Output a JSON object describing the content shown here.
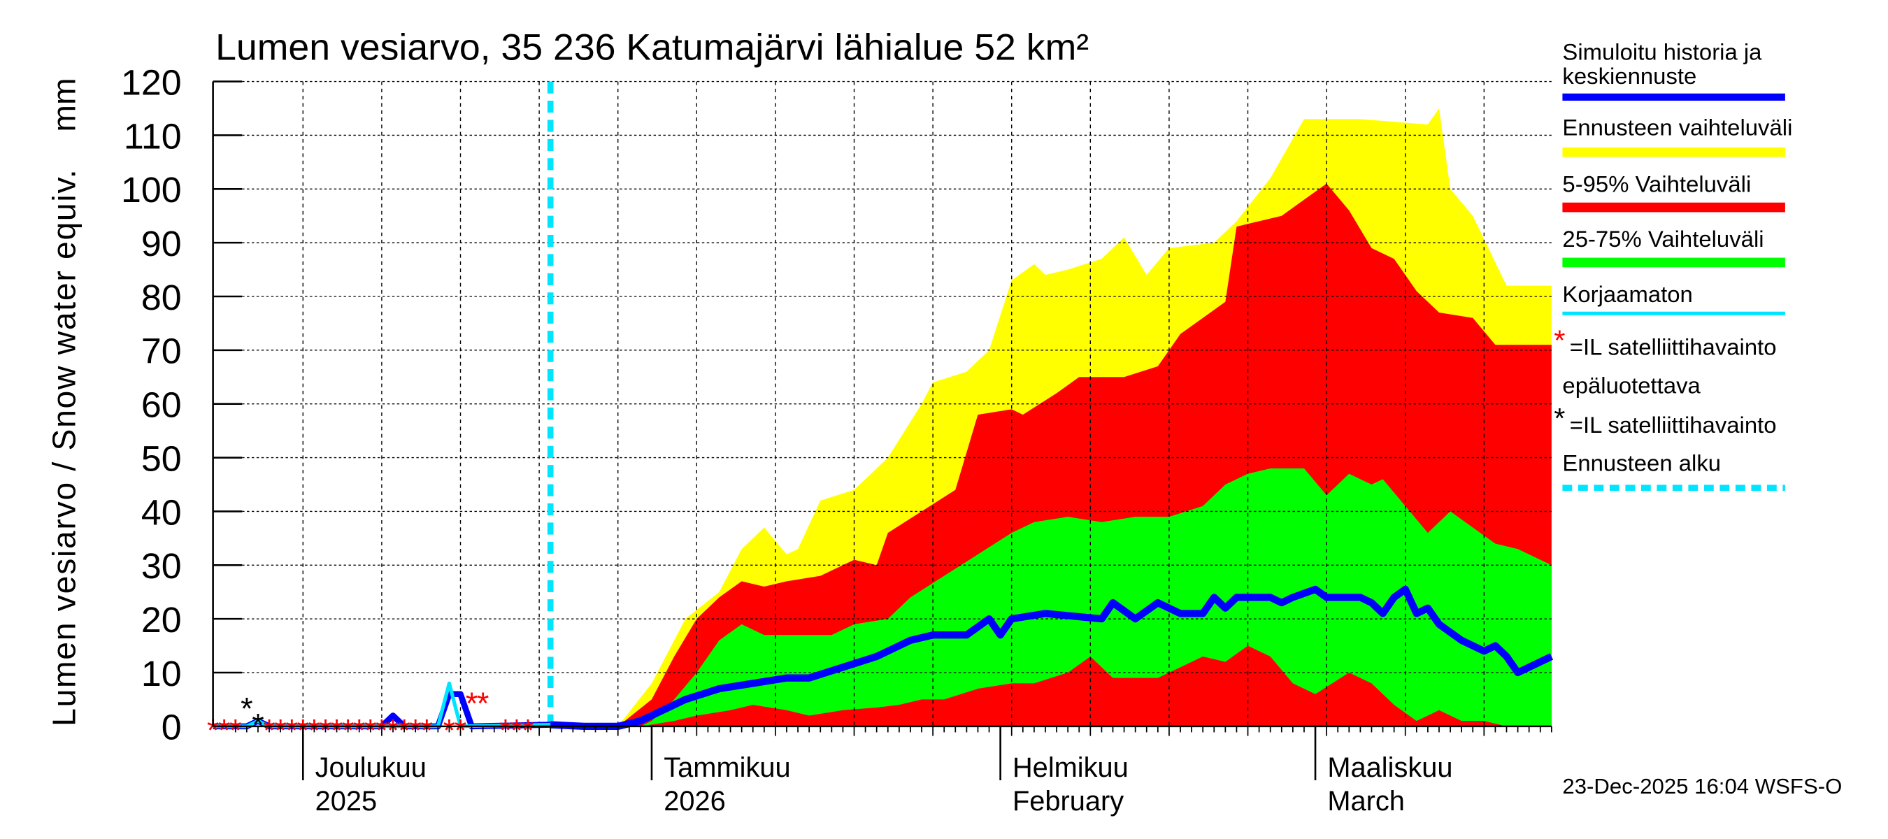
{
  "chart_data": {
    "type": "area",
    "title": "Lumen vesiarvo, 35 236 Katumajärvi lähialue 52 km²",
    "ylabel": "Lumen vesiarvo / Snow water equiv.",
    "yunit": "mm",
    "ylim": [
      0,
      120
    ],
    "yticks": [
      0,
      10,
      20,
      30,
      40,
      50,
      60,
      70,
      80,
      90,
      100,
      110,
      120
    ],
    "xlim": [
      "2025-11-23",
      "2026-03-22"
    ],
    "grid": true,
    "legend_position": "right",
    "month_labels": [
      {
        "date": "2025-12-01",
        "line1": "Joulukuu",
        "line2": "2025"
      },
      {
        "date": "2026-01-01",
        "line1": "Tammikuu",
        "line2": "2026"
      },
      {
        "date": "2026-02-01",
        "line1": "Helmikuu",
        "line2": "February"
      },
      {
        "date": "2026-03-01",
        "line1": "Maaliskuu",
        "line2": "March"
      }
    ],
    "forecast_start": "2025-12-23",
    "colors": {
      "median": "#0000ff",
      "range": "#ffff00",
      "p5_95": "#ff0000",
      "p25_75": "#00ff00",
      "uncorrected": "#00e5ff",
      "forecast_start": "#00e5ff",
      "obs_unreliable": "#ff0000",
      "obs": "#000000"
    },
    "series": {
      "range_upper": [
        [
          "2025-12-29",
          0
        ],
        [
          "2026-01-01",
          8
        ],
        [
          "2026-01-04",
          20
        ],
        [
          "2026-01-07",
          25
        ],
        [
          "2026-01-09",
          33
        ],
        [
          "2026-01-11",
          37
        ],
        [
          "2026-01-13",
          32
        ],
        [
          "2026-01-14",
          33
        ],
        [
          "2026-01-16",
          42
        ],
        [
          "2026-01-19",
          44
        ],
        [
          "2026-01-22",
          50
        ],
        [
          "2026-01-25",
          60
        ],
        [
          "2026-01-26",
          64
        ],
        [
          "2026-01-29",
          66
        ],
        [
          "2026-01-31",
          70
        ],
        [
          "2026-02-02",
          83
        ],
        [
          "2026-02-04",
          86
        ],
        [
          "2026-02-05",
          84
        ],
        [
          "2026-02-07",
          85
        ],
        [
          "2026-02-10",
          87
        ],
        [
          "2026-02-12",
          91
        ],
        [
          "2026-02-14",
          84
        ],
        [
          "2026-02-16",
          89
        ],
        [
          "2026-02-20",
          90
        ],
        [
          "2026-02-22",
          94
        ],
        [
          "2026-02-25",
          102
        ],
        [
          "2026-02-28",
          113
        ],
        [
          "2026-03-05",
          113
        ],
        [
          "2026-03-11",
          112
        ],
        [
          "2026-03-12",
          115
        ],
        [
          "2026-03-13",
          100
        ],
        [
          "2026-03-15",
          95
        ],
        [
          "2026-03-18",
          82
        ],
        [
          "2026-03-22",
          82
        ]
      ],
      "p95": [
        [
          "2025-12-29",
          0
        ],
        [
          "2026-01-01",
          5
        ],
        [
          "2026-01-03",
          13
        ],
        [
          "2026-01-05",
          20
        ],
        [
          "2026-01-07",
          24
        ],
        [
          "2026-01-09",
          27
        ],
        [
          "2026-01-11",
          26
        ],
        [
          "2026-01-13",
          27
        ],
        [
          "2026-01-16",
          28
        ],
        [
          "2026-01-19",
          31
        ],
        [
          "2026-01-21",
          30
        ],
        [
          "2026-01-22",
          36
        ],
        [
          "2026-01-25",
          40
        ],
        [
          "2026-01-28",
          44
        ],
        [
          "2026-01-30",
          58
        ],
        [
          "2026-02-02",
          59
        ],
        [
          "2026-02-03",
          58
        ],
        [
          "2026-02-06",
          62
        ],
        [
          "2026-02-08",
          65
        ],
        [
          "2026-02-12",
          65
        ],
        [
          "2026-02-15",
          67
        ],
        [
          "2026-02-17",
          73
        ],
        [
          "2026-02-19",
          76
        ],
        [
          "2026-02-21",
          79
        ],
        [
          "2026-02-22",
          93
        ],
        [
          "2026-02-26",
          95
        ],
        [
          "2026-02-28",
          98
        ],
        [
          "2026-03-02",
          101
        ],
        [
          "2026-03-04",
          96
        ],
        [
          "2026-03-06",
          89
        ],
        [
          "2026-03-08",
          87
        ],
        [
          "2026-03-10",
          81
        ],
        [
          "2026-03-12",
          77
        ],
        [
          "2026-03-15",
          76
        ],
        [
          "2026-03-17",
          71
        ],
        [
          "2026-03-22",
          71
        ]
      ],
      "p75": [
        [
          "2025-12-31",
          0
        ],
        [
          "2026-01-01",
          1
        ],
        [
          "2026-01-03",
          5
        ],
        [
          "2026-01-05",
          10
        ],
        [
          "2026-01-07",
          16
        ],
        [
          "2026-01-09",
          19
        ],
        [
          "2026-01-11",
          17
        ],
        [
          "2026-01-14",
          17
        ],
        [
          "2026-01-17",
          17
        ],
        [
          "2026-01-19",
          19
        ],
        [
          "2026-01-22",
          20
        ],
        [
          "2026-01-24",
          24
        ],
        [
          "2026-01-27",
          28
        ],
        [
          "2026-01-30",
          32
        ],
        [
          "2026-02-02",
          36
        ],
        [
          "2026-02-04",
          38
        ],
        [
          "2026-02-07",
          39
        ],
        [
          "2026-02-10",
          38
        ],
        [
          "2026-02-13",
          39
        ],
        [
          "2026-02-16",
          39
        ],
        [
          "2026-02-19",
          41
        ],
        [
          "2026-02-21",
          45
        ],
        [
          "2026-02-23",
          47
        ],
        [
          "2026-02-25",
          48
        ],
        [
          "2026-02-28",
          48
        ],
        [
          "2026-03-02",
          43
        ],
        [
          "2026-03-04",
          47
        ],
        [
          "2026-03-06",
          45
        ],
        [
          "2026-03-07",
          46
        ],
        [
          "2026-03-09",
          41
        ],
        [
          "2026-03-11",
          36
        ],
        [
          "2026-03-13",
          40
        ],
        [
          "2026-03-15",
          37
        ],
        [
          "2026-03-17",
          34
        ],
        [
          "2026-03-19",
          33
        ],
        [
          "2026-03-22",
          30
        ]
      ],
      "p25": [
        [
          "2025-12-31",
          0
        ],
        [
          "2026-01-03",
          1
        ],
        [
          "2026-01-05",
          2
        ],
        [
          "2026-01-08",
          3
        ],
        [
          "2026-01-10",
          4
        ],
        [
          "2026-01-13",
          3
        ],
        [
          "2026-01-15",
          2
        ],
        [
          "2026-01-18",
          3
        ],
        [
          "2026-01-21",
          3.5
        ],
        [
          "2026-01-23",
          4
        ],
        [
          "2026-01-25",
          5
        ],
        [
          "2026-01-27",
          5
        ],
        [
          "2026-01-30",
          7
        ],
        [
          "2026-02-02",
          8
        ],
        [
          "2026-02-04",
          8
        ],
        [
          "2026-02-07",
          10
        ],
        [
          "2026-02-09",
          13
        ],
        [
          "2026-02-11",
          9
        ],
        [
          "2026-02-15",
          9
        ],
        [
          "2026-02-17",
          11
        ],
        [
          "2026-02-19",
          13
        ],
        [
          "2026-02-21",
          12
        ],
        [
          "2026-02-23",
          15
        ],
        [
          "2026-02-25",
          13
        ],
        [
          "2026-02-27",
          8
        ],
        [
          "2026-03-01",
          6
        ],
        [
          "2026-03-04",
          10
        ],
        [
          "2026-03-06",
          8
        ],
        [
          "2026-03-08",
          4
        ],
        [
          "2026-03-10",
          1
        ],
        [
          "2026-03-12",
          3
        ],
        [
          "2026-03-14",
          1
        ],
        [
          "2026-03-16",
          1
        ],
        [
          "2026-03-18",
          0
        ],
        [
          "2026-03-22",
          0
        ]
      ],
      "median": [
        [
          "2025-12-23",
          0.3
        ],
        [
          "2025-12-26",
          0
        ],
        [
          "2025-12-29",
          0
        ],
        [
          "2025-12-31",
          1
        ],
        [
          "2026-01-02",
          3
        ],
        [
          "2026-01-04",
          5
        ],
        [
          "2026-01-07",
          7
        ],
        [
          "2026-01-10",
          8
        ],
        [
          "2026-01-13",
          9
        ],
        [
          "2026-01-15",
          9
        ],
        [
          "2026-01-18",
          11
        ],
        [
          "2026-01-21",
          13
        ],
        [
          "2026-01-24",
          16
        ],
        [
          "2026-01-26",
          17
        ],
        [
          "2026-01-29",
          17
        ],
        [
          "2026-01-31",
          20
        ],
        [
          "2026-02-01",
          17
        ],
        [
          "2026-02-02",
          20
        ],
        [
          "2026-02-05",
          21
        ],
        [
          "2026-02-10",
          20
        ],
        [
          "2026-02-11",
          23
        ],
        [
          "2026-02-13",
          20
        ],
        [
          "2026-02-15",
          23
        ],
        [
          "2026-02-17",
          21
        ],
        [
          "2026-02-19",
          21
        ],
        [
          "2026-02-20",
          24
        ],
        [
          "2026-02-21",
          22
        ],
        [
          "2026-02-22",
          24
        ],
        [
          "2026-02-25",
          24
        ],
        [
          "2026-02-26",
          23
        ],
        [
          "2026-02-27",
          24
        ],
        [
          "2026-03-01",
          25.5
        ],
        [
          "2026-03-02",
          24
        ],
        [
          "2026-03-05",
          24
        ],
        [
          "2026-03-06",
          23
        ],
        [
          "2026-03-07",
          21
        ],
        [
          "2026-03-08",
          24
        ],
        [
          "2026-03-09",
          25.5
        ],
        [
          "2026-03-10",
          21
        ],
        [
          "2026-03-11",
          22
        ],
        [
          "2026-03-12",
          19
        ],
        [
          "2026-03-14",
          16
        ],
        [
          "2026-03-16",
          14
        ],
        [
          "2026-03-17",
          15
        ],
        [
          "2026-03-18",
          13
        ],
        [
          "2026-03-19",
          10
        ],
        [
          "2026-03-22",
          13
        ]
      ],
      "history": [
        [
          "2025-11-23",
          0
        ],
        [
          "2025-11-26",
          0
        ],
        [
          "2025-11-27",
          1
        ],
        [
          "2025-11-28",
          0
        ],
        [
          "2025-12-08",
          0
        ],
        [
          "2025-12-09",
          2
        ],
        [
          "2025-12-10",
          0
        ],
        [
          "2025-12-13",
          0
        ],
        [
          "2025-12-14",
          6
        ],
        [
          "2025-12-15",
          6
        ],
        [
          "2025-12-16",
          0
        ],
        [
          "2025-12-23",
          0.3
        ]
      ],
      "uncorrected": [
        [
          "2025-11-23",
          0
        ],
        [
          "2025-11-26",
          0
        ],
        [
          "2025-11-27",
          1
        ],
        [
          "2025-11-28",
          0
        ],
        [
          "2025-12-12",
          0
        ],
        [
          "2025-12-13",
          0
        ],
        [
          "2025-12-14",
          8
        ],
        [
          "2025-12-15",
          0
        ],
        [
          "2025-12-23",
          0.3
        ]
      ],
      "obs_unreliable": [
        [
          "2025-11-23",
          0
        ],
        [
          "2025-11-24",
          0
        ],
        [
          "2025-11-25",
          0
        ],
        [
          "2025-11-28",
          0
        ],
        [
          "2025-11-29",
          0
        ],
        [
          "2025-11-30",
          0
        ],
        [
          "2025-12-01",
          0
        ],
        [
          "2025-12-02",
          0
        ],
        [
          "2025-12-03",
          0
        ],
        [
          "2025-12-04",
          0
        ],
        [
          "2025-12-05",
          0
        ],
        [
          "2025-12-06",
          0
        ],
        [
          "2025-12-07",
          0
        ],
        [
          "2025-12-08",
          0
        ],
        [
          "2025-12-09",
          0
        ],
        [
          "2025-12-10",
          0
        ],
        [
          "2025-12-11",
          0
        ],
        [
          "2025-12-12",
          0
        ],
        [
          "2025-12-14",
          0
        ],
        [
          "2025-12-15",
          0
        ],
        [
          "2025-12-16",
          5
        ],
        [
          "2025-12-17",
          5
        ],
        [
          "2025-12-19",
          0
        ],
        [
          "2025-12-20",
          0
        ],
        [
          "2025-12-21",
          0
        ]
      ],
      "obs": [
        [
          "2025-11-26",
          4
        ],
        [
          "2025-11-27",
          1
        ]
      ]
    }
  },
  "legend": [
    {
      "label": "Simuloitu historia ja",
      "label2": "keskiennuste"
    },
    {
      "label": "Ennusteen vaihteluväli"
    },
    {
      "label": "5-95% Vaihteluväli"
    },
    {
      "label": "25-75% Vaihteluväli"
    },
    {
      "label": "Korjaamaton"
    },
    {
      "label": "=IL satelliittihavainto",
      "label2": "epäluotettava"
    },
    {
      "label": "=IL satelliittihavainto"
    },
    {
      "label": "Ennusteen alku"
    }
  ],
  "footer": "23-Dec-2025 16:04 WSFS-O"
}
